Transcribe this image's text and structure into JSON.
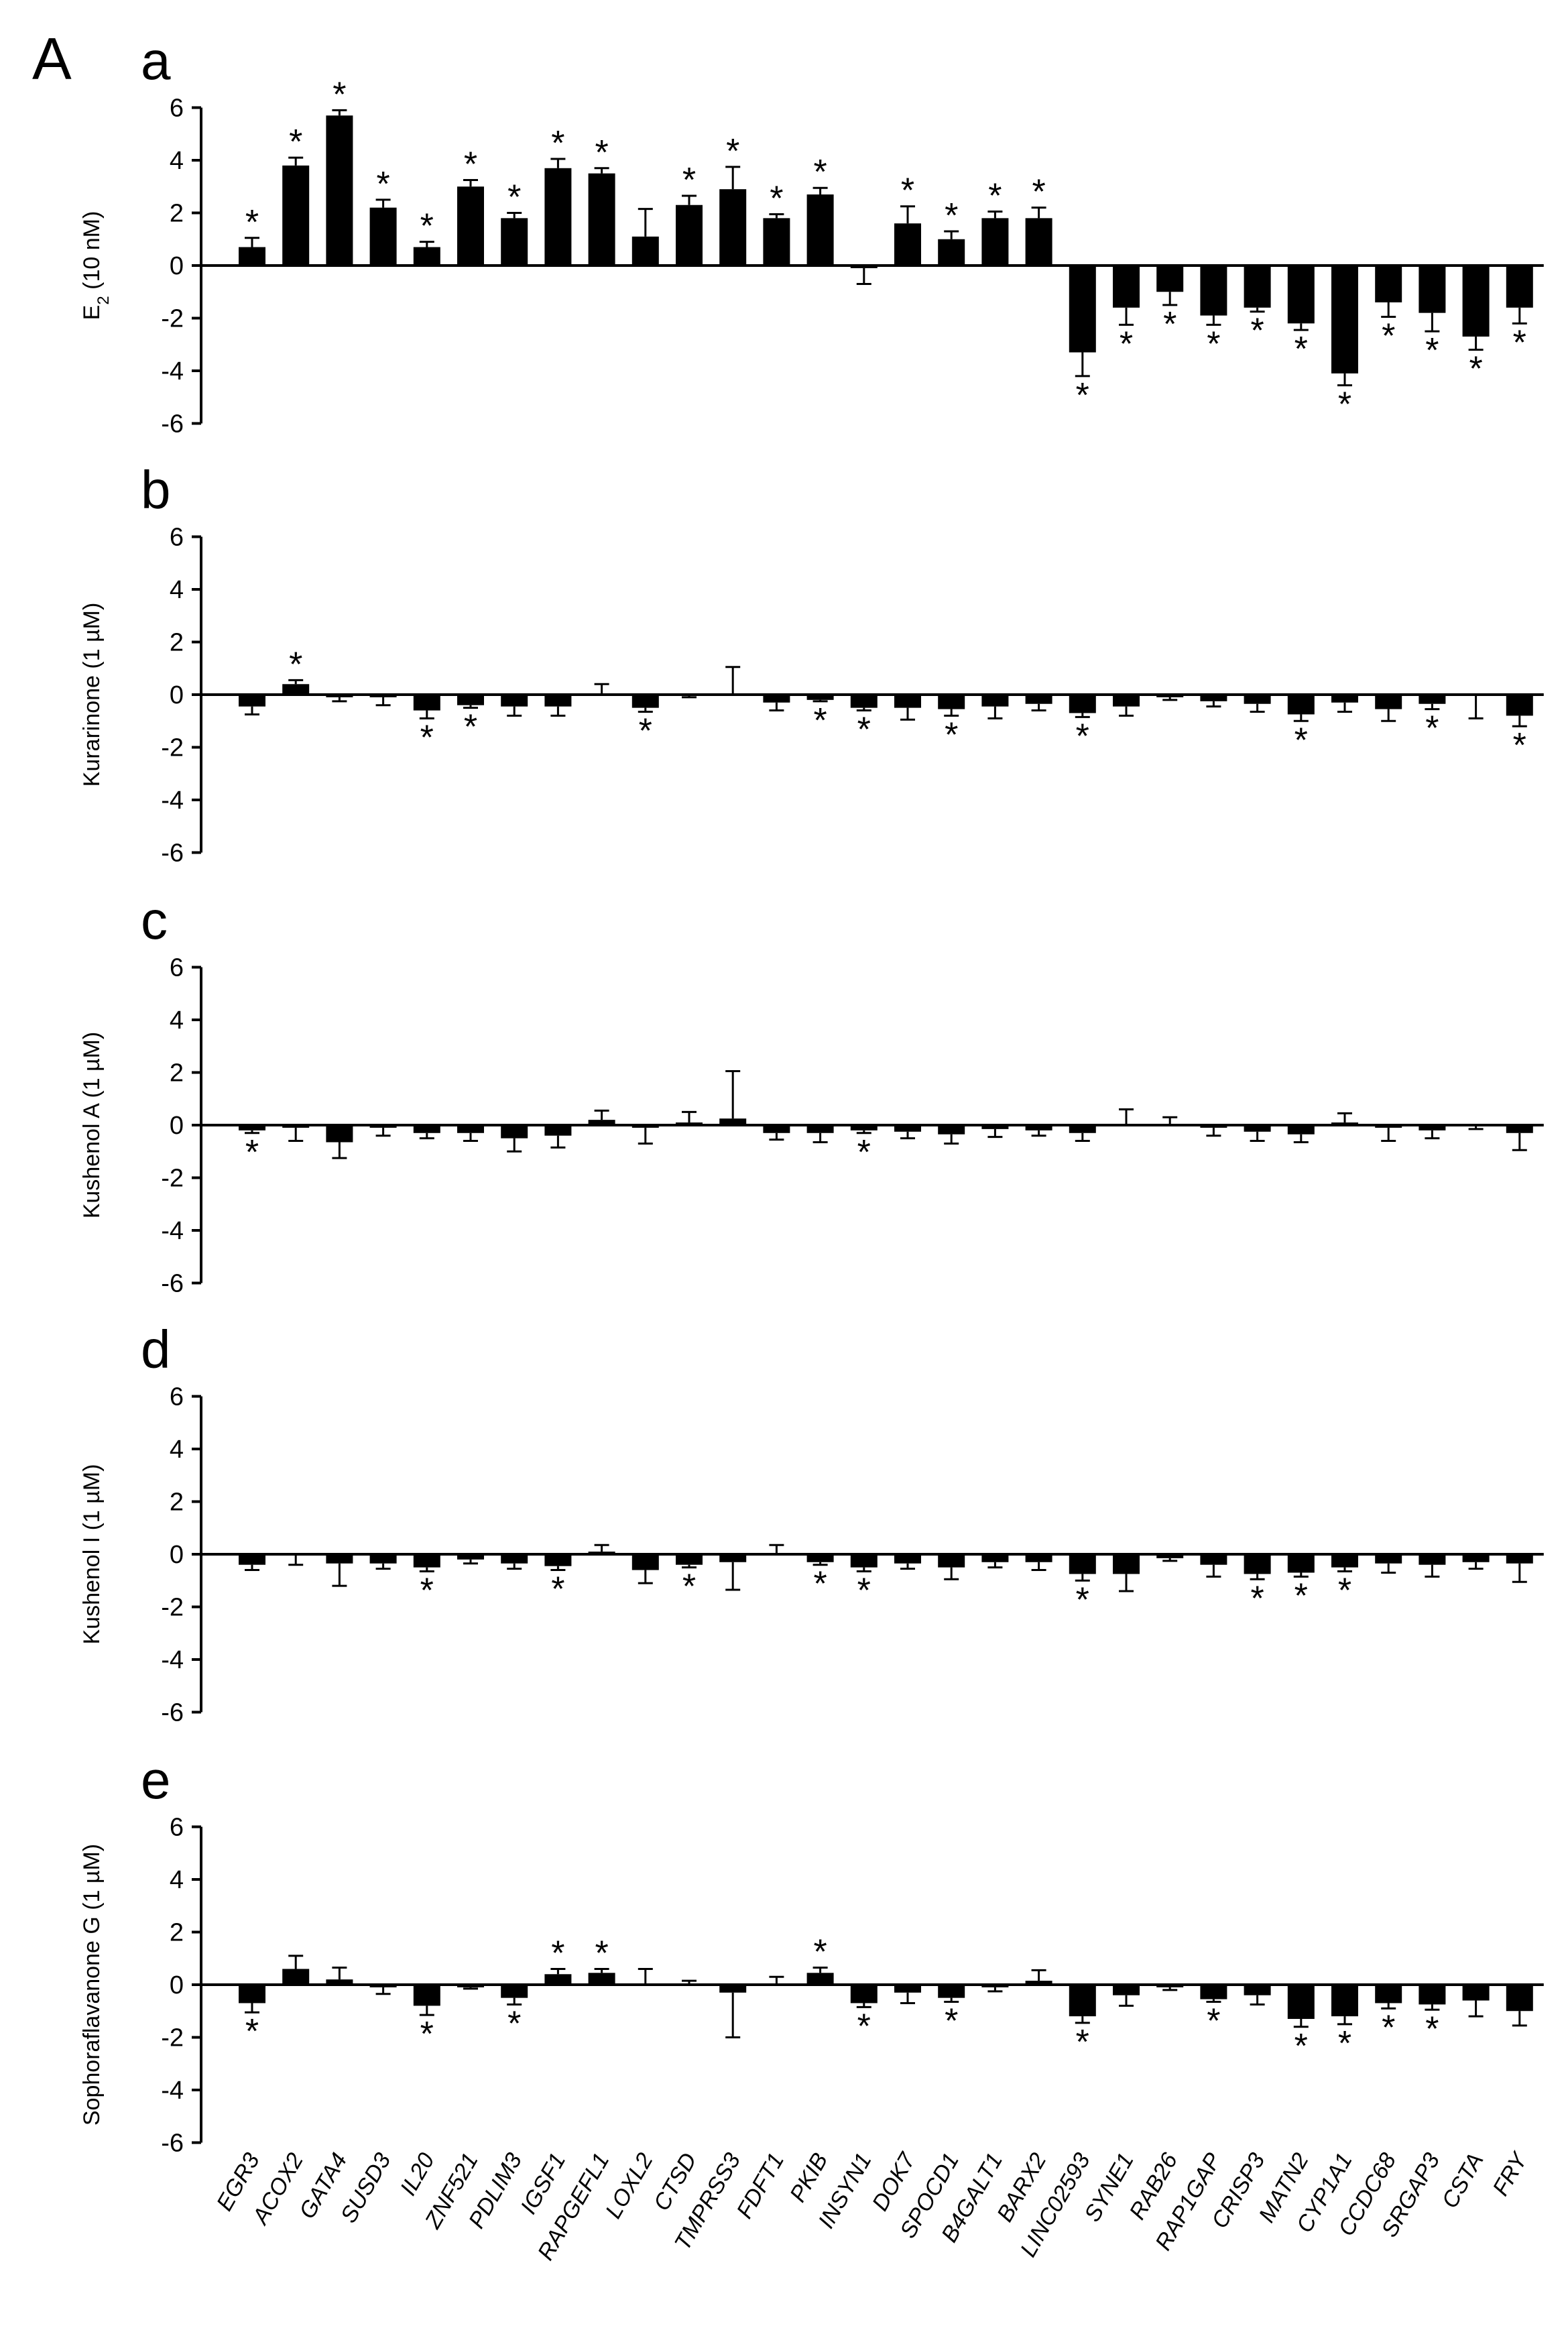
{
  "figure_letter": "A",
  "chart_data": [
    {
      "type": "bar",
      "panel": "a",
      "ylabel": "E2 (10 nM)",
      "ylim": [
        -6,
        6
      ],
      "yticks": [
        6,
        4,
        2,
        0,
        -2,
        -4,
        -6
      ],
      "categories": [
        "EGR3",
        "ACOX2",
        "GATA4",
        "SUSD3",
        "IL20",
        "ZNF521",
        "PDLIM3",
        "IGSF1",
        "RAPGEFL1",
        "LOXL2",
        "CTSD",
        "TMPRSS3",
        "FDFT1",
        "PKIB",
        "INSYN1",
        "DOK7",
        "SPOCD1",
        "B4GALT1",
        "BARX2",
        "LINC02593",
        "SYNE1",
        "RAB26",
        "RAP1GAP",
        "CRISP3",
        "MATN2",
        "CYP1A1",
        "CCDC68",
        "SRGAP3",
        "CSTA",
        "FRY"
      ],
      "values": [
        0.7,
        3.8,
        5.7,
        2.2,
        0.7,
        3.0,
        1.8,
        3.7,
        3.5,
        1.1,
        2.3,
        2.9,
        1.8,
        2.7,
        -0.1,
        1.6,
        1.0,
        1.8,
        1.8,
        -3.3,
        -1.6,
        -1.0,
        -1.9,
        -1.6,
        -2.2,
        -4.1,
        -1.4,
        -1.8,
        -2.7,
        -1.6
      ],
      "errors": [
        0.35,
        0.3,
        0.2,
        0.3,
        0.2,
        0.25,
        0.2,
        0.35,
        0.2,
        1.05,
        0.35,
        0.85,
        0.15,
        0.25,
        0.6,
        0.65,
        0.3,
        0.25,
        0.4,
        0.9,
        0.65,
        0.5,
        0.35,
        0.15,
        0.25,
        0.45,
        0.55,
        0.7,
        0.5,
        0.6
      ],
      "significant": [
        1,
        1,
        1,
        1,
        1,
        1,
        1,
        1,
        1,
        0,
        1,
        1,
        1,
        1,
        0,
        1,
        1,
        1,
        1,
        1,
        1,
        1,
        1,
        1,
        1,
        1,
        1,
        1,
        1,
        1
      ]
    },
    {
      "type": "bar",
      "panel": "b",
      "ylabel": "Kurarinone (1 µM)",
      "ylim": [
        -6,
        6
      ],
      "yticks": [
        6,
        4,
        2,
        0,
        -2,
        -4,
        -6
      ],
      "categories": [
        "EGR3",
        "ACOX2",
        "GATA4",
        "SUSD3",
        "IL20",
        "ZNF521",
        "PDLIM3",
        "IGSF1",
        "RAPGEFL1",
        "LOXL2",
        "CTSD",
        "TMPRSS3",
        "FDFT1",
        "PKIB",
        "INSYN1",
        "DOK7",
        "SPOCD1",
        "B4GALT1",
        "BARX2",
        "LINC02593",
        "SYNE1",
        "RAB26",
        "RAP1GAP",
        "CRISP3",
        "MATN2",
        "CYP1A1",
        "CCDC68",
        "SRGAP3",
        "CSTA",
        "FRY"
      ],
      "values": [
        -0.45,
        0.4,
        -0.1,
        -0.1,
        -0.6,
        -0.4,
        -0.45,
        -0.45,
        0.05,
        -0.5,
        -0.05,
        0.05,
        -0.3,
        -0.2,
        -0.5,
        -0.5,
        -0.55,
        -0.45,
        -0.35,
        -0.7,
        -0.45,
        -0.1,
        -0.25,
        -0.35,
        -0.75,
        -0.3,
        -0.55,
        -0.35,
        -0.05,
        -0.8
      ],
      "errors": [
        0.3,
        0.15,
        0.15,
        0.3,
        0.3,
        0.1,
        0.35,
        0.35,
        0.35,
        0.15,
        0.05,
        1.0,
        0.3,
        0.05,
        0.1,
        0.45,
        0.25,
        0.45,
        0.25,
        0.15,
        0.35,
        0.1,
        0.2,
        0.3,
        0.25,
        0.35,
        0.45,
        0.2,
        0.85,
        0.4
      ],
      "significant": [
        0,
        1,
        0,
        0,
        1,
        1,
        0,
        0,
        0,
        1,
        0,
        0,
        0,
        1,
        1,
        0,
        1,
        0,
        0,
        1,
        0,
        0,
        0,
        0,
        1,
        0,
        0,
        1,
        0,
        1
      ]
    },
    {
      "type": "bar",
      "panel": "c",
      "ylabel": "Kushenol A (1 µM)",
      "ylim": [
        -6,
        6
      ],
      "yticks": [
        6,
        4,
        2,
        0,
        -2,
        -4,
        -6
      ],
      "categories": [
        "EGR3",
        "ACOX2",
        "GATA4",
        "SUSD3",
        "IL20",
        "ZNF521",
        "PDLIM3",
        "IGSF1",
        "RAPGEFL1",
        "LOXL2",
        "CTSD",
        "TMPRSS3",
        "FDFT1",
        "PKIB",
        "INSYN1",
        "DOK7",
        "SPOCD1",
        "B4GALT1",
        "BARX2",
        "LINC02593",
        "SYNE1",
        "RAB26",
        "RAP1GAP",
        "CRISP3",
        "MATN2",
        "CYP1A1",
        "CCDC68",
        "SRGAP3",
        "CSTA",
        "FRY"
      ],
      "values": [
        -0.2,
        -0.1,
        -0.65,
        -0.1,
        -0.3,
        -0.3,
        -0.5,
        -0.4,
        0.2,
        -0.1,
        0.1,
        0.25,
        -0.3,
        -0.3,
        -0.2,
        -0.25,
        -0.35,
        -0.15,
        -0.2,
        -0.3,
        0.05,
        0.05,
        -0.1,
        -0.25,
        -0.35,
        0.1,
        -0.1,
        -0.2,
        -0.05,
        -0.3
      ],
      "errors": [
        0.1,
        0.5,
        0.6,
        0.3,
        0.2,
        0.3,
        0.5,
        0.45,
        0.35,
        0.6,
        0.4,
        1.8,
        0.25,
        0.35,
        0.1,
        0.25,
        0.35,
        0.3,
        0.2,
        0.3,
        0.55,
        0.25,
        0.3,
        0.35,
        0.3,
        0.35,
        0.5,
        0.3,
        0.1,
        0.65
      ],
      "significant": [
        1,
        0,
        0,
        0,
        0,
        0,
        0,
        0,
        0,
        0,
        0,
        0,
        0,
        0,
        1,
        0,
        0,
        0,
        0,
        0,
        0,
        0,
        0,
        0,
        0,
        0,
        0,
        0,
        0,
        0
      ]
    },
    {
      "type": "bar",
      "panel": "d",
      "ylabel": "Kushenol I (1 µM)",
      "ylim": [
        -6,
        6
      ],
      "yticks": [
        6,
        4,
        2,
        0,
        -2,
        -4,
        -6
      ],
      "categories": [
        "EGR3",
        "ACOX2",
        "GATA4",
        "SUSD3",
        "IL20",
        "ZNF521",
        "PDLIM3",
        "IGSF1",
        "RAPGEFL1",
        "LOXL2",
        "CTSD",
        "TMPRSS3",
        "FDFT1",
        "PKIB",
        "INSYN1",
        "DOK7",
        "SPOCD1",
        "B4GALT1",
        "BARX2",
        "LINC02593",
        "SYNE1",
        "RAB26",
        "RAP1GAP",
        "CRISP3",
        "MATN2",
        "CYP1A1",
        "CCDC68",
        "SRGAP3",
        "CSTA",
        "FRY"
      ],
      "values": [
        -0.4,
        -0.05,
        -0.35,
        -0.35,
        -0.5,
        -0.2,
        -0.35,
        -0.45,
        0.1,
        -0.6,
        -0.4,
        -0.3,
        0.05,
        -0.3,
        -0.5,
        -0.35,
        -0.5,
        -0.3,
        -0.3,
        -0.75,
        -0.75,
        -0.15,
        -0.4,
        -0.75,
        -0.7,
        -0.5,
        -0.35,
        -0.4,
        -0.3,
        -0.35
      ],
      "errors": [
        0.2,
        0.35,
        0.85,
        0.2,
        0.15,
        0.15,
        0.2,
        0.15,
        0.25,
        0.5,
        0.1,
        1.05,
        0.3,
        0.1,
        0.15,
        0.2,
        0.45,
        0.2,
        0.3,
        0.25,
        0.65,
        0.1,
        0.45,
        0.2,
        0.15,
        0.15,
        0.35,
        0.45,
        0.25,
        0.7
      ],
      "significant": [
        0,
        0,
        0,
        0,
        1,
        0,
        0,
        1,
        0,
        0,
        1,
        0,
        0,
        1,
        1,
        0,
        0,
        0,
        0,
        1,
        0,
        0,
        0,
        1,
        1,
        1,
        0,
        0,
        0,
        0
      ]
    },
    {
      "type": "bar",
      "panel": "e",
      "ylabel": "Sophoraflavanone G (1 µM)",
      "ylim": [
        -6,
        6
      ],
      "yticks": [
        6,
        4,
        2,
        0,
        -2,
        -4,
        -6
      ],
      "categories": [
        "EGR3",
        "ACOX2",
        "GATA4",
        "SUSD3",
        "IL20",
        "ZNF521",
        "PDLIM3",
        "IGSF1",
        "RAPGEFL1",
        "LOXL2",
        "CTSD",
        "TMPRSS3",
        "FDFT1",
        "PKIB",
        "INSYN1",
        "DOK7",
        "SPOCD1",
        "B4GALT1",
        "BARX2",
        "LINC02593",
        "SYNE1",
        "RAB26",
        "RAP1GAP",
        "CRISP3",
        "MATN2",
        "CYP1A1",
        "CCDC68",
        "SRGAP3",
        "CSTA",
        "FRY"
      ],
      "values": [
        -0.7,
        0.6,
        0.2,
        -0.1,
        -0.8,
        -0.1,
        -0.5,
        0.4,
        0.45,
        0.05,
        0.05,
        -0.3,
        0.05,
        0.45,
        -0.7,
        -0.3,
        -0.5,
        -0.1,
        0.15,
        -1.2,
        -0.4,
        -0.1,
        -0.55,
        -0.4,
        -1.3,
        -1.2,
        -0.7,
        -0.75,
        -0.6,
        -1.0
      ],
      "errors": [
        0.35,
        0.5,
        0.45,
        0.25,
        0.35,
        0.05,
        0.25,
        0.2,
        0.15,
        0.55,
        0.1,
        1.7,
        0.25,
        0.2,
        0.15,
        0.4,
        0.15,
        0.15,
        0.4,
        0.25,
        0.4,
        0.1,
        0.1,
        0.35,
        0.3,
        0.3,
        0.2,
        0.2,
        0.6,
        0.55
      ],
      "significant": [
        1,
        0,
        0,
        0,
        1,
        0,
        1,
        1,
        1,
        0,
        0,
        0,
        0,
        1,
        1,
        0,
        1,
        0,
        0,
        1,
        0,
        0,
        1,
        0,
        1,
        1,
        1,
        1,
        0,
        0
      ]
    }
  ]
}
